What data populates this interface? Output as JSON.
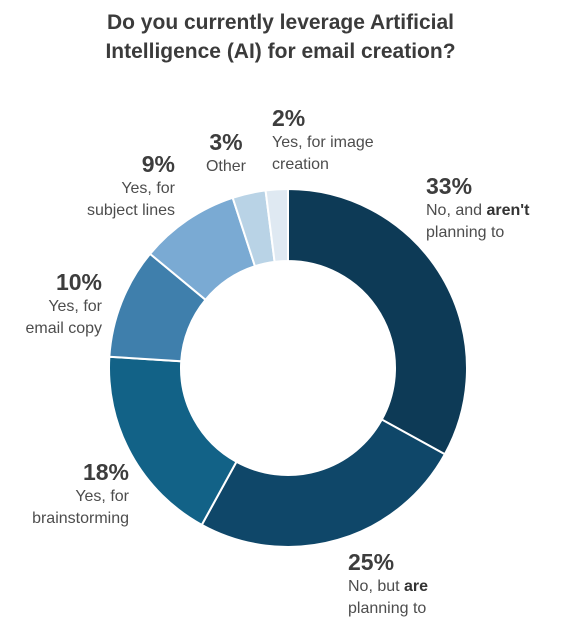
{
  "chart_data": {
    "type": "pie",
    "donut": true,
    "title_line1": "Do you currently leverage Artificial",
    "title_line2": "Intelligence (AI) for email creation?",
    "colors": [
      "#0d3a56",
      "#0f4769",
      "#126287",
      "#3f7fac",
      "#7aaad3",
      "#b9d3e6",
      "#dfe9f2"
    ],
    "slices": [
      {
        "value": 33,
        "pct_label": "33%",
        "line1_pre": "No, and ",
        "line1_bold": "aren't",
        "line2": "planning to"
      },
      {
        "value": 25,
        "pct_label": "25%",
        "line1_pre": "No, but ",
        "line1_bold": "are",
        "line2": "planning to"
      },
      {
        "value": 18,
        "pct_label": "18%",
        "line1": "Yes, for",
        "line2": "brainstorming"
      },
      {
        "value": 10,
        "pct_label": "10%",
        "line1": "Yes, for",
        "line2": "email copy"
      },
      {
        "value": 9,
        "pct_label": "9%",
        "line1": "Yes, for",
        "line2": "subject lines"
      },
      {
        "value": 3,
        "pct_label": "3%",
        "line1": "Other",
        "line2": ""
      },
      {
        "value": 2,
        "pct_label": "2%",
        "line1": "Yes, for image",
        "line2": "creation"
      }
    ]
  }
}
